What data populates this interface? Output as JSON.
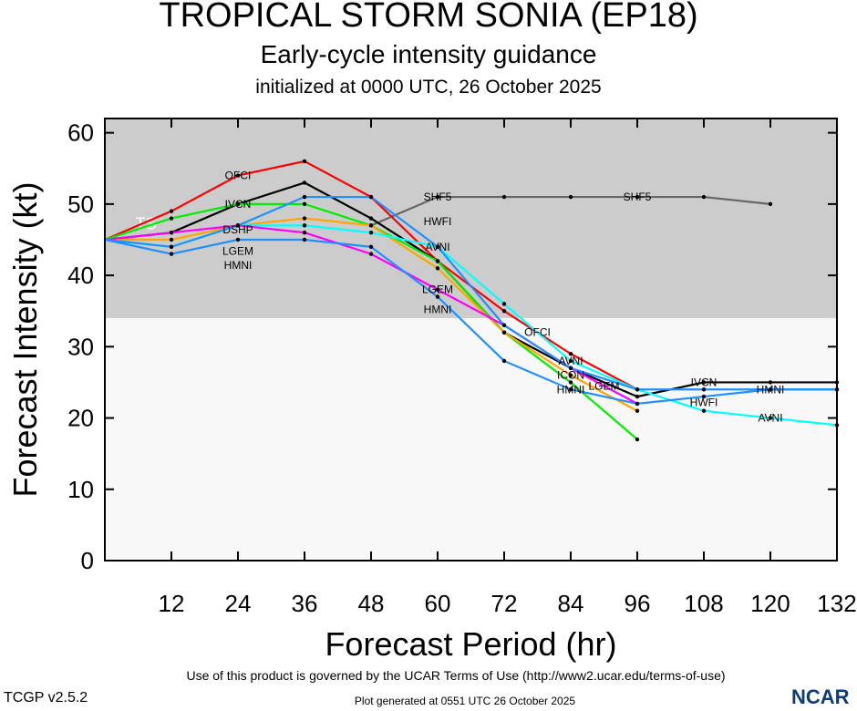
{
  "title": "TROPICAL STORM SONIA (EP18)",
  "subtitle": "Early-cycle intensity guidance",
  "init": "initialized at 0000 UTC, 26 October 2025",
  "footer_terms": "Use of this product is governed by the UCAR Terms of Use (http://www2.ucar.edu/terms-of-use)",
  "footer_generated": "Plot generated at 0551 UTC   26 October 2025",
  "version": "TCGP v2.5.2",
  "logo": "NCAR",
  "chart_data": {
    "type": "line",
    "xlabel": "Forecast Period (hr)",
    "ylabel": "Forecast Intensity (kt)",
    "xlim": [
      0,
      132
    ],
    "ylim": [
      0,
      62
    ],
    "xticks": [
      12,
      24,
      36,
      48,
      60,
      72,
      84,
      96,
      108,
      120,
      132
    ],
    "yticks": [
      0,
      10,
      20,
      30,
      40,
      50,
      60
    ],
    "ts_threshold": 34,
    "ts_label": "TS",
    "colors": {
      "shade_ts": "#cccccc",
      "shade_below": "#f8f8f8"
    },
    "x": [
      0,
      12,
      24,
      36,
      48,
      60,
      72,
      84,
      96,
      108,
      120,
      132
    ],
    "series": [
      {
        "name": "SHF5",
        "color": "#666666",
        "values": [
          null,
          null,
          null,
          null,
          47,
          51,
          51,
          51,
          51,
          51,
          50,
          null
        ],
        "label_at": [
          60,
          96
        ]
      },
      {
        "name": "OFCI",
        "color": "#ff0000",
        "values": [
          45,
          49,
          54,
          56,
          51,
          42,
          35,
          29,
          24,
          null,
          null,
          null
        ],
        "label_at": [
          24,
          78
        ]
      },
      {
        "name": "IVCN",
        "color": "#000000",
        "values": [
          45,
          46,
          50,
          53,
          48,
          42,
          32,
          27,
          23,
          25,
          25,
          25
        ],
        "label_at": [
          24,
          108
        ]
      },
      {
        "name": "DSHP",
        "color": "#00ee00",
        "values": [
          45,
          48,
          50,
          50,
          47,
          42,
          32,
          25,
          17,
          null,
          null,
          null
        ],
        "label_at": [
          24
        ]
      },
      {
        "name": "ICON",
        "color": "#ffa500",
        "values": [
          45,
          45,
          47,
          48,
          47,
          41,
          32,
          26,
          21,
          null,
          null,
          null
        ],
        "label_at": [
          84
        ]
      },
      {
        "name": "AVNI",
        "color": "#00ffff",
        "values": [
          45,
          44,
          47,
          47,
          46,
          44,
          36,
          28,
          24,
          21,
          20,
          19
        ],
        "label_at": [
          60,
          84,
          120
        ]
      },
      {
        "name": "LGEM",
        "color": "#ff00ff",
        "values": [
          45,
          46,
          47,
          46,
          43,
          38,
          33,
          27,
          22,
          null,
          null,
          null
        ],
        "label_at": [
          24,
          60,
          90
        ]
      },
      {
        "name": "HWFI",
        "color": "#1e90ff",
        "values": [
          45,
          44,
          47,
          51,
          51,
          44,
          33,
          27,
          24,
          24,
          24,
          24
        ],
        "label_at": [
          60,
          108
        ]
      },
      {
        "name": "HMNI",
        "color": "#1e90ff",
        "values": [
          45,
          43,
          45,
          45,
          44,
          37,
          28,
          24,
          22,
          23,
          24,
          24
        ],
        "label_at": [
          24,
          60,
          84,
          120
        ]
      }
    ]
  }
}
